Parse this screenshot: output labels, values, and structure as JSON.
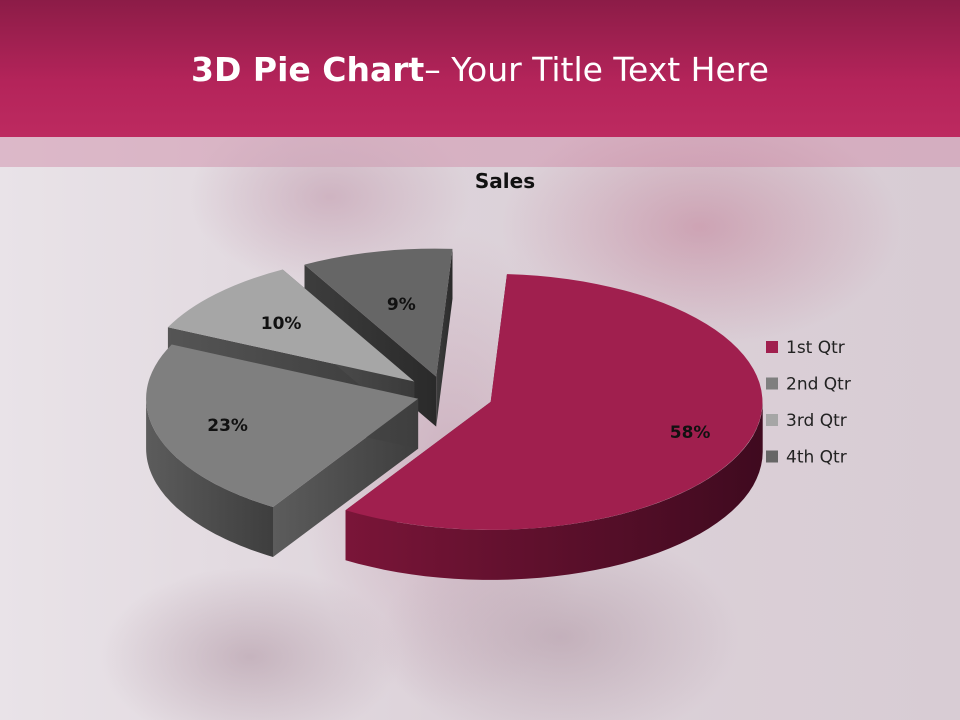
{
  "slide": {
    "title_bold": "3D Pie Chart",
    "title_rest": "– Your Title Text Here"
  },
  "colors": {
    "header": "#b4245a",
    "q1": "#a01f4e",
    "q2": "#7f7f7f",
    "q3": "#a6a6a6",
    "q4": "#666666"
  },
  "chart_data": {
    "type": "pie",
    "title": "Sales",
    "categories": [
      "1st Qtr",
      "2nd Qtr",
      "3rd Qtr",
      "4th Qtr"
    ],
    "values": [
      58,
      23,
      10,
      9
    ],
    "data_labels": [
      "58%",
      "23%",
      "10%",
      "9%"
    ],
    "exploded": true,
    "three_d": true,
    "legend_position": "right"
  }
}
